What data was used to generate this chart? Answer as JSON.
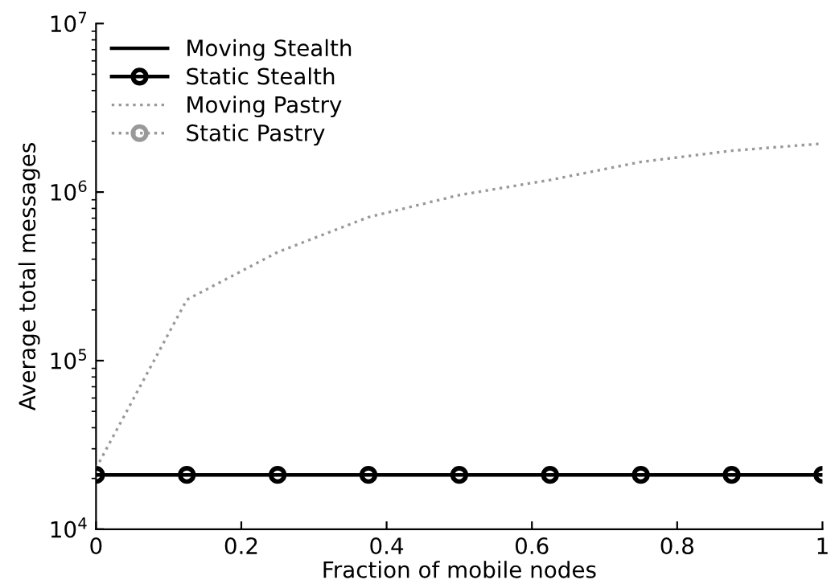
{
  "chart_data": {
    "type": "line",
    "xlabel": "Fraction of mobile nodes",
    "ylabel": "Average total messages",
    "x": [
      0,
      0.125,
      0.25,
      0.375,
      0.5,
      0.625,
      0.75,
      0.875,
      1
    ],
    "series": [
      {
        "name": "Moving Stealth",
        "color": "#000000",
        "line_style": "solid",
        "marker": "none",
        "values": [
          null,
          null,
          null,
          null,
          null,
          null,
          null,
          null,
          null
        ]
      },
      {
        "name": "Static Stealth",
        "color": "#000000",
        "line_style": "solid",
        "marker": "circle",
        "values": [
          21000,
          21000,
          21000,
          21000,
          21000,
          21000,
          21000,
          21000,
          21000
        ]
      },
      {
        "name": "Moving Pastry",
        "color": "#999999",
        "line_style": "dotted",
        "marker": "none",
        "values": [
          23000,
          230000,
          440000,
          710000,
          960000,
          1180000,
          1510000,
          1760000,
          1940000
        ]
      },
      {
        "name": "Static Pastry",
        "color": "#999999",
        "line_style": "dotted",
        "marker": "circle",
        "values": [
          null,
          null,
          null,
          null,
          null,
          null,
          null,
          null,
          null
        ]
      }
    ],
    "log": "y",
    "xlim": [
      0,
      1
    ],
    "xticks": [
      0,
      0.2,
      0.4,
      0.6,
      0.8,
      1
    ],
    "ylim": [
      10000,
      10000000
    ],
    "yticks": [
      {
        "value": 10000,
        "label": "10$^{4}$"
      },
      {
        "value": 100000,
        "label": "10$^{5}$"
      },
      {
        "value": 1000000,
        "label": "10$^{6}$"
      },
      {
        "value": 10000000,
        "label": "10$^{7}$"
      }
    ],
    "grid": false,
    "legend": "top left"
  }
}
